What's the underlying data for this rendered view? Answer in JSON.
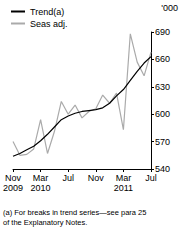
{
  "chart_data": {
    "type": "line",
    "ylabel": "'000",
    "note": "(a) For breaks in trend series—see para 25\nof the Explanatory Notes.",
    "categories": [
      "Nov\n2009",
      null,
      null,
      null,
      "Mar\n2010",
      null,
      null,
      null,
      "Jul",
      null,
      null,
      null,
      "Nov",
      null,
      null,
      null,
      "Mar\n2011",
      null,
      null,
      null,
      "Jul"
    ],
    "series": [
      {
        "name": "Trend(a)",
        "color": "#000000",
        "values": [
          554,
          557,
          561,
          565,
          571,
          578,
          586,
          594,
          598,
          601,
          603,
          604,
          605,
          607,
          612,
          620,
          627,
          637,
          647,
          656,
          663
        ]
      },
      {
        "name": "Seas adj.",
        "color": "#aaaaaa",
        "values": [
          570,
          555,
          556,
          562,
          594,
          557,
          581,
          614,
          600,
          610,
          596,
          603,
          606,
          621,
          612,
          623,
          583,
          688,
          657,
          642,
          668
        ]
      }
    ],
    "ylim": [
      540,
      690
    ],
    "yticks": [
      540,
      570,
      600,
      630,
      660,
      690
    ],
    "grid": false,
    "legend": "top-left"
  }
}
